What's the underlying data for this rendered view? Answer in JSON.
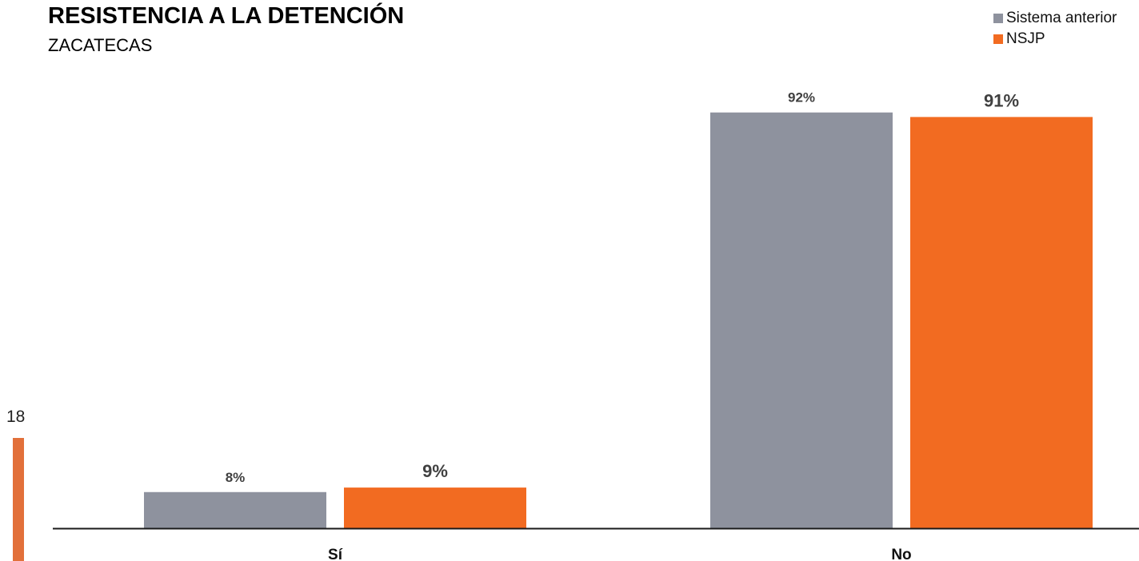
{
  "chart_data": {
    "type": "bar",
    "title": "RESISTENCIA A LA DETENCIÓN",
    "subtitle": "ZACATECAS",
    "categories": [
      "Sí",
      "No"
    ],
    "series": [
      {
        "name": "Sistema anterior",
        "color": "#8e929e",
        "values": [
          8,
          92
        ],
        "labels": [
          "8%",
          "92%"
        ]
      },
      {
        "name": "NSJP",
        "color": "#f26b21",
        "values": [
          9,
          91
        ],
        "labels": [
          "9%",
          "91%"
        ]
      }
    ],
    "ylim": [
      0,
      100
    ],
    "unit": "%",
    "grid": false,
    "legend_position": "top-right"
  },
  "page": {
    "number": "18",
    "accent_color": "#e2703a"
  }
}
